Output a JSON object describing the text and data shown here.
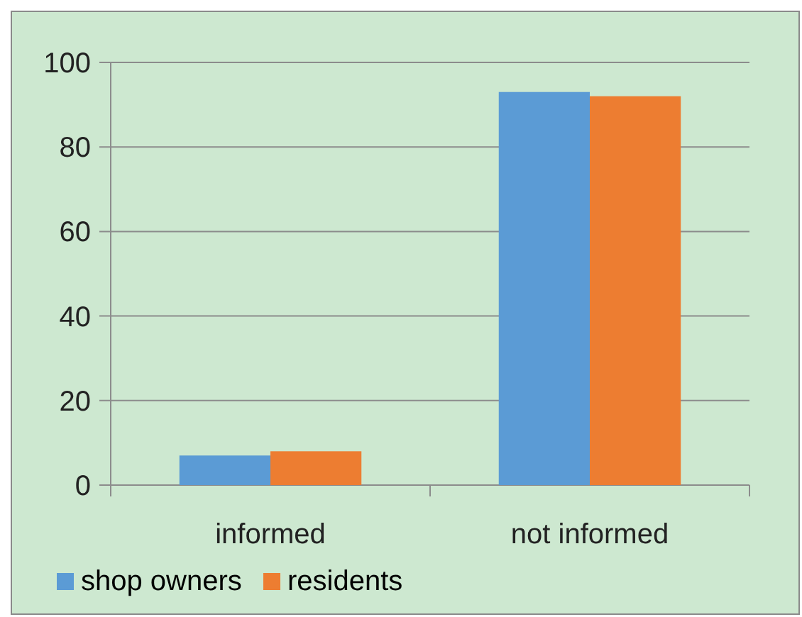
{
  "chart_data": {
    "type": "bar",
    "categories": [
      "informed",
      "not informed"
    ],
    "series": [
      {
        "name": "shop owners",
        "color": "#5b9bd5",
        "values": [
          7,
          93
        ]
      },
      {
        "name": "residents",
        "color": "#ed7d31",
        "values": [
          8,
          92
        ]
      }
    ],
    "ylim": [
      0,
      100
    ],
    "yticks": [
      0,
      20,
      40,
      60,
      80,
      100
    ],
    "grid": "y",
    "legend": "bottom left"
  }
}
